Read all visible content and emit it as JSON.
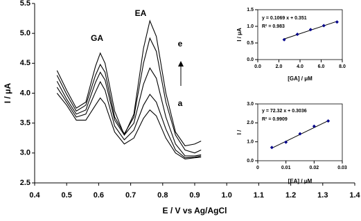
{
  "chart_data": [
    {
      "type": "line",
      "xlabel": "E / V vs Ag/AgCl",
      "ylabel": "I / μA",
      "annotations": [
        "GA",
        "EA",
        "e",
        "a"
      ],
      "x": [
        0.47,
        0.5,
        0.53,
        0.56,
        0.59,
        0.605,
        0.62,
        0.65,
        0.68,
        0.71,
        0.74,
        0.76,
        0.78,
        0.81,
        0.84,
        0.87,
        0.9,
        0.92
      ],
      "series": [
        {
          "color": "#000000",
          "values": [
            4.38,
            4.05,
            3.75,
            3.85,
            4.45,
            4.67,
            4.5,
            3.7,
            3.3,
            3.65,
            4.75,
            5.21,
            4.95,
            4.0,
            3.35,
            3.12,
            3.15,
            3.2
          ]
        },
        {
          "color": "#000000",
          "values": [
            4.3,
            3.98,
            3.7,
            3.8,
            4.3,
            4.48,
            4.35,
            3.6,
            3.32,
            3.6,
            4.5,
            4.92,
            4.7,
            3.85,
            3.3,
            3.05,
            3.0,
            3.05
          ]
        },
        {
          "color": "#000000",
          "values": [
            4.2,
            3.9,
            3.65,
            3.72,
            4.18,
            4.35,
            4.22,
            3.55,
            3.3,
            3.5,
            4.15,
            4.42,
            4.25,
            3.6,
            3.15,
            2.95,
            2.95,
            2.97
          ]
        },
        {
          "color": "#000000",
          "values": [
            4.1,
            3.85,
            3.6,
            3.65,
            4.02,
            4.19,
            4.05,
            3.45,
            3.22,
            3.38,
            3.8,
            3.98,
            3.85,
            3.4,
            3.05,
            2.92,
            2.93,
            2.95
          ]
        },
        {
          "color": "#000000",
          "values": [
            4.0,
            3.8,
            3.55,
            3.55,
            3.8,
            3.92,
            3.82,
            3.35,
            3.15,
            3.25,
            3.58,
            3.72,
            3.62,
            3.25,
            3.0,
            2.9,
            2.92,
            2.93
          ]
        }
      ],
      "xlim": [
        0.4,
        1.4
      ],
      "xticks": [
        0.4,
        0.5,
        0.6,
        0.7,
        0.8,
        0.9,
        {
          "value": 1,
          "label": "1.0"
        },
        1.1,
        1.2,
        1.3,
        1.4
      ],
      "ylim": [
        2.5,
        5.5
      ],
      "yticks": [
        2.5,
        {
          "value": 3,
          "label": "3.0"
        },
        3.5,
        {
          "value": 4,
          "label": "4.0"
        },
        4.5,
        {
          "value": 5,
          "label": "5.0"
        },
        5.5
      ],
      "grid": false
    },
    {
      "type": "scatter",
      "xlabel": "[GA] / μM",
      "ylabel": "I / μA",
      "equation": "y = 0.1069 x + 0.351",
      "r_squared": "R² = 0.983",
      "x": [
        2.5,
        3.75,
        5,
        6.25,
        7.5
      ],
      "series": [
        {
          "color": "#00008b",
          "values": [
            0.6,
            0.76,
            0.9,
            1.02,
            1.13
          ]
        }
      ],
      "trendline": {
        "color": "#000000",
        "x": [
          2.5,
          7.5
        ],
        "values": [
          0.62,
          1.15
        ]
      },
      "xlim": [
        0,
        8
      ],
      "xticks": [
        {
          "value": 0,
          "label": "0.0"
        },
        {
          "value": 2,
          "label": "2.0"
        },
        {
          "value": 4,
          "label": "4.0"
        },
        {
          "value": 6,
          "label": "6.0"
        },
        {
          "value": 8,
          "label": "8.0"
        }
      ],
      "ylim": [
        0,
        1.5
      ],
      "yticks": [
        {
          "value": 0,
          "label": "0.0"
        },
        0.5,
        {
          "value": 1,
          "label": "1.0"
        },
        1.5
      ],
      "grid": false
    },
    {
      "type": "scatter",
      "xlabel": "[EA] / μM",
      "ylabel": "I /",
      "equation": "y = 72.32 x + 0.3036",
      "r_squared": "R² = 0.9909",
      "x": [
        0.005,
        0.01,
        0.015,
        0.02,
        0.025
      ],
      "series": [
        {
          "color": "#00008b",
          "values": [
            0.7,
            0.98,
            1.42,
            1.82,
            2.1
          ]
        }
      ],
      "trendline": {
        "color": "#000000",
        "x": [
          0.005,
          0.025
        ],
        "values": [
          0.665,
          2.11
        ]
      },
      "xlim": [
        0,
        0.03
      ],
      "xticks": [
        0,
        0.01,
        0.02,
        0.03
      ],
      "ylim": [
        0,
        3
      ],
      "yticks": [
        {
          "value": 0,
          "label": "0.0"
        },
        {
          "value": 1,
          "label": "1.0"
        },
        {
          "value": 2,
          "label": "2.0"
        },
        {
          "value": 3,
          "label": "3.0"
        }
      ],
      "grid": false
    }
  ]
}
